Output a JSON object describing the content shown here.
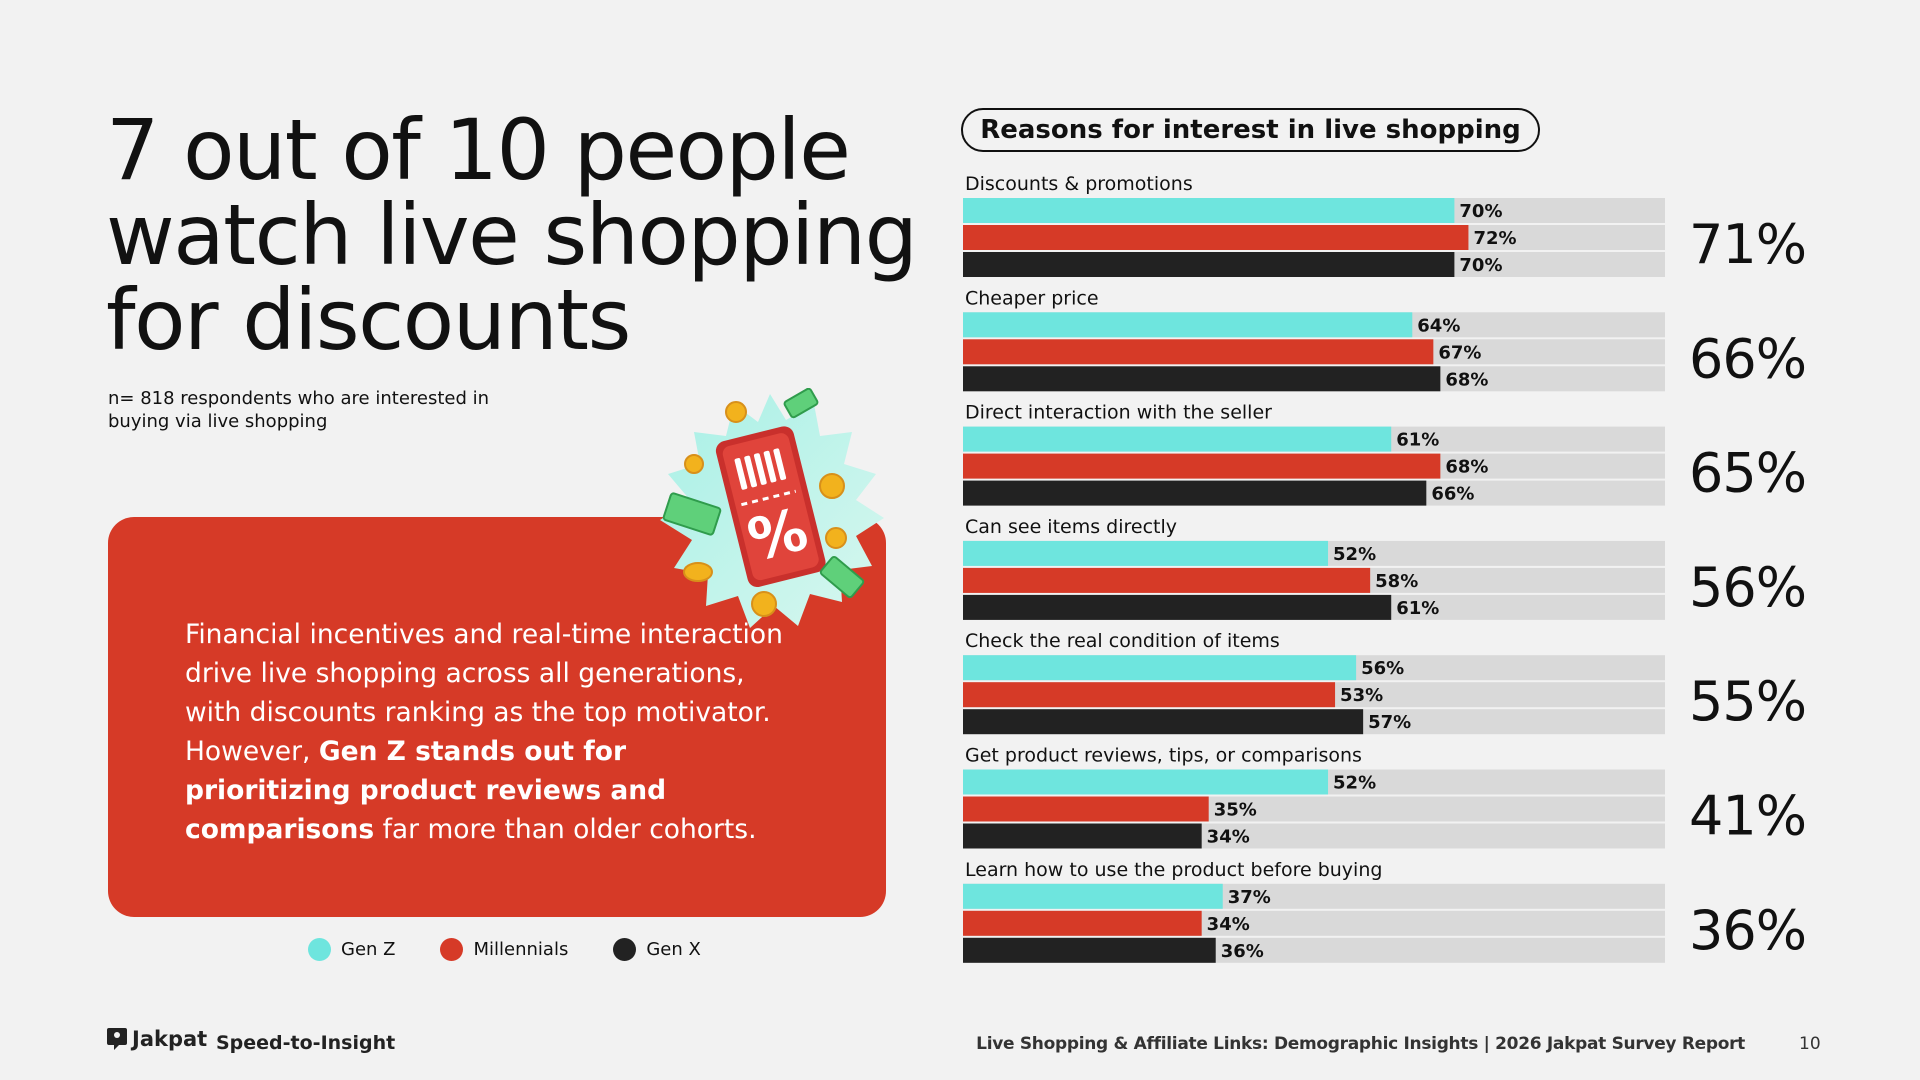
{
  "headline": {
    "line1": "7 out of 10 people",
    "line2": "watch live shopping",
    "line3": "for discounts"
  },
  "sample_note": {
    "line1": "n= 818 respondents who are interested in",
    "line2": "buying via live shopping"
  },
  "card": {
    "part1": "Financial incentives and real-time interaction drive live shopping across all generations, with discounts ranking as the top motivator. However, ",
    "bold": "Gen Z stands out for prioritizing product reviews and comparisons",
    "part2": " far more than older cohorts."
  },
  "badge": {
    "icon": "discount-coupon-icon",
    "glyph": "%"
  },
  "legend": [
    {
      "label": "Gen Z",
      "color": "#6ee5de"
    },
    {
      "label": "Millennials",
      "color": "#d63a27"
    },
    {
      "label": "Gen X",
      "color": "#222222"
    }
  ],
  "footer": {
    "brand": "Jakpat",
    "tagline": "Speed-to-Insight",
    "report": "Live Shopping & Affiliate Links: Demographic Insights | 2026 Jakpat Survey Report",
    "page": "10"
  },
  "chart_data": {
    "type": "bar",
    "orientation": "horizontal",
    "title": "Reasons for interest in live shopping",
    "xlim": [
      0,
      100
    ],
    "value_suffix": "%",
    "categories": [
      "Discounts & promotions",
      "Cheaper price",
      "Direct interaction with the seller",
      "Can see items directly",
      "Check the real condition of items",
      "Get product reviews, tips, or comparisons",
      "Learn how to use the product before buying"
    ],
    "series": [
      {
        "name": "Gen Z",
        "color": "#6ee5de",
        "values": [
          70,
          64,
          61,
          52,
          56,
          52,
          37
        ]
      },
      {
        "name": "Millennials",
        "color": "#d63a27",
        "values": [
          72,
          67,
          68,
          58,
          53,
          35,
          34
        ]
      },
      {
        "name": "Gen X",
        "color": "#222222",
        "values": [
          70,
          68,
          66,
          61,
          57,
          34,
          36
        ]
      }
    ],
    "totals": [
      71,
      66,
      65,
      56,
      55,
      41,
      36
    ],
    "track_color": "#d9d9d9"
  }
}
